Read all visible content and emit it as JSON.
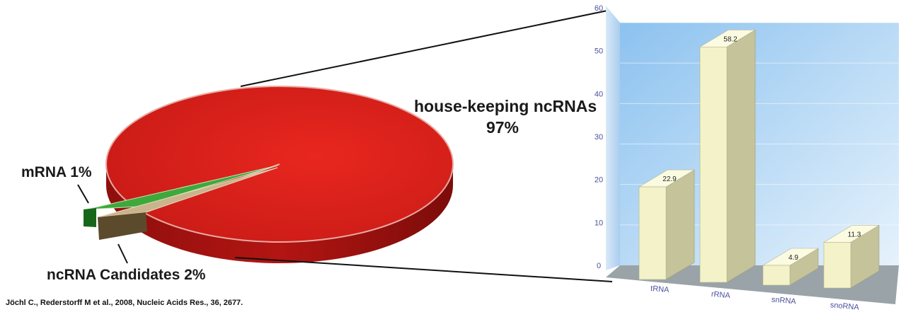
{
  "pie_chart": {
    "type": "pie",
    "slices": [
      {
        "label": "house-keeping ncRNAs",
        "percent_label": "97%",
        "value": 97,
        "color": "#d8201c"
      },
      {
        "label": "mRNA 1%",
        "value": 1,
        "color": "#3ea93a"
      },
      {
        "label": "ncRNA Candidates 2%",
        "value": 2,
        "color": "#c9b48c"
      }
    ]
  },
  "chart_data": [
    {
      "type": "pie",
      "categories": [
        "house-keeping ncRNAs",
        "mRNA",
        "ncRNA Candidates"
      ],
      "values": [
        97,
        1,
        2
      ],
      "unit": "%"
    },
    {
      "type": "bar",
      "categories": [
        "tRNA",
        "rRNA",
        "snRNA",
        "snoRNA"
      ],
      "values": [
        22.9,
        58.2,
        4.9,
        11.3
      ],
      "value_labels": [
        "22.9",
        "58.2",
        "4.9",
        "11.3"
      ],
      "ylim": [
        0,
        60
      ],
      "yticks": [
        "0",
        "10",
        "20",
        "30",
        "40",
        "50",
        "60"
      ],
      "grid": true,
      "title": "",
      "xlabel": "",
      "ylabel": "",
      "colors": {
        "bar": "#f3f2c8",
        "floor": "#9aa3a8",
        "wall": "#bcd9f3",
        "axis_text": "#4a4f9a"
      }
    }
  ],
  "citation": "Jöchl C., Rederstorff M et al., 2008, Nucleic Acids Res., 36, 2677."
}
